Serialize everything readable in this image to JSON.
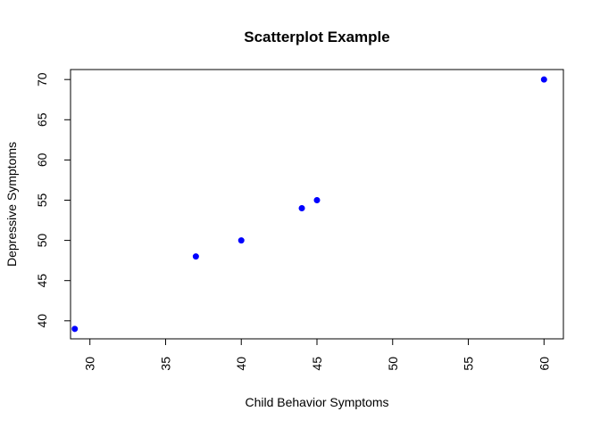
{
  "chart_data": {
    "type": "scatter",
    "title": "Scatterplot Example",
    "xlabel": "Child Behavior Symptoms",
    "ylabel": "Depressive Symptoms",
    "xlim": [
      28.72,
      61.28
    ],
    "ylim": [
      37.76,
      71.24
    ],
    "x_ticks": [
      30,
      35,
      40,
      45,
      50,
      55,
      60
    ],
    "y_ticks": [
      40,
      45,
      50,
      55,
      60,
      65,
      70
    ],
    "x_tick_labels": [
      "30",
      "35",
      "40",
      "45",
      "50",
      "55",
      "60"
    ],
    "y_tick_labels": [
      "40",
      "45",
      "50",
      "55",
      "60",
      "65",
      "70"
    ],
    "points": [
      {
        "x": 29,
        "y": 39
      },
      {
        "x": 37,
        "y": 48
      },
      {
        "x": 40,
        "y": 50
      },
      {
        "x": 44,
        "y": 54
      },
      {
        "x": 45,
        "y": 55
      },
      {
        "x": 60,
        "y": 70
      }
    ],
    "point_color": "#0000ff",
    "grid": false
  }
}
